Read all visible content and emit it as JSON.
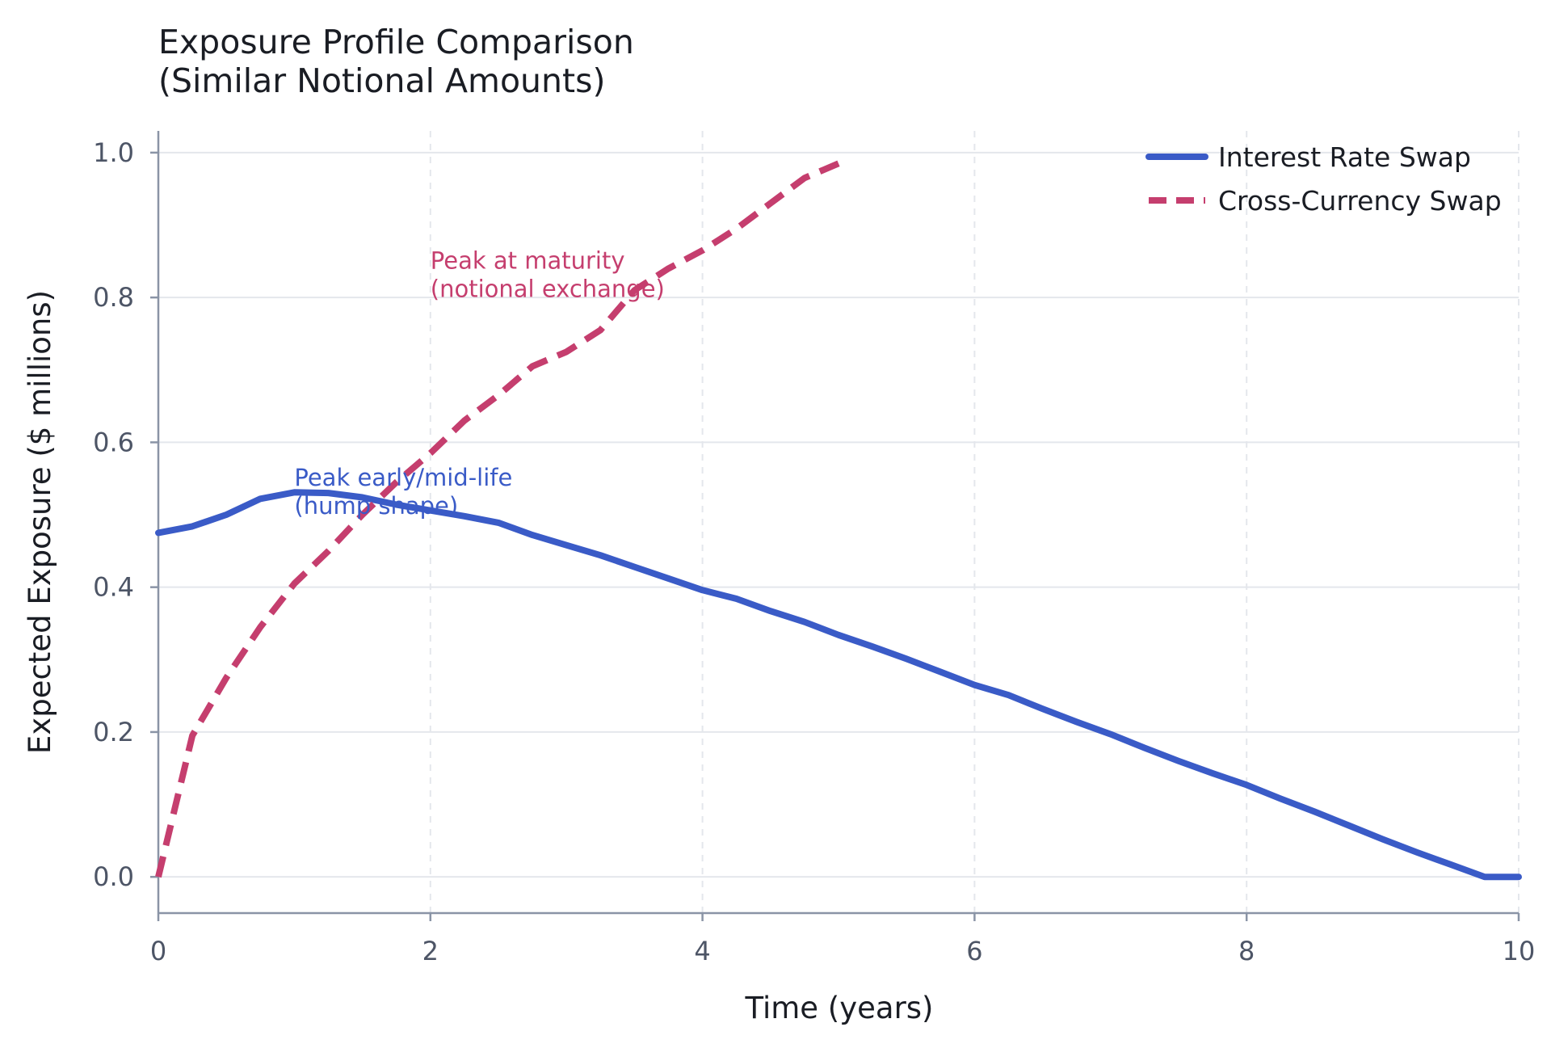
{
  "chart_data": {
    "type": "line",
    "title": [
      "Exposure Profile Comparison",
      "(Similar Notional Amounts)"
    ],
    "xlabel": "Time (years)",
    "ylabel": "Expected Exposure ($ millions)",
    "xlim": [
      0,
      10
    ],
    "ylim": [
      -0.05,
      1.03
    ],
    "xticks": [
      0,
      2,
      4,
      6,
      8,
      10
    ],
    "xtick_labels": [
      "0",
      "2",
      "4",
      "6",
      "8",
      "10"
    ],
    "yticks": [
      0.0,
      0.2,
      0.4,
      0.6,
      0.8,
      1.0
    ],
    "ytick_labels": [
      "0.0",
      "0.2",
      "0.4",
      "0.6",
      "0.8",
      "1.0"
    ],
    "grid": true,
    "legend_position": "top-right",
    "series": [
      {
        "name": "Interest Rate Swap",
        "color": "#3a5bc7",
        "style": "solid",
        "x": [
          0,
          0.25,
          0.5,
          0.75,
          1.0,
          1.25,
          1.5,
          1.75,
          2.0,
          2.25,
          2.5,
          2.75,
          3.0,
          3.25,
          3.5,
          3.75,
          4.0,
          4.25,
          4.5,
          4.75,
          5.0,
          5.25,
          5.5,
          5.75,
          6.0,
          6.25,
          6.5,
          6.75,
          7.0,
          7.25,
          7.5,
          7.75,
          8.0,
          8.25,
          8.5,
          8.75,
          9.0,
          9.25,
          9.5,
          9.75,
          10.0
        ],
        "values": [
          0.475,
          0.484,
          0.5,
          0.522,
          0.531,
          0.53,
          0.524,
          0.514,
          0.506,
          0.498,
          0.489,
          0.472,
          0.458,
          0.444,
          0.428,
          0.412,
          0.396,
          0.384,
          0.367,
          0.352,
          0.334,
          0.318,
          0.301,
          0.283,
          0.265,
          0.251,
          0.232,
          0.214,
          0.197,
          0.178,
          0.16,
          0.143,
          0.127,
          0.108,
          0.09,
          0.071,
          0.052,
          0.034,
          0.017,
          0.0,
          0.0
        ],
        "values_note_removed": true
      },
      {
        "name": "Cross-Currency Swap",
        "color": "#c53e6e",
        "style": "dashed",
        "x": [
          0,
          0.25,
          0.5,
          0.75,
          1.0,
          1.25,
          1.5,
          1.75,
          2.0,
          2.25,
          2.5,
          2.75,
          3.0,
          3.25,
          3.5,
          3.75,
          4.0,
          4.25,
          4.5,
          4.75,
          5.0
        ],
        "values": [
          0.0,
          0.195,
          0.275,
          0.345,
          0.405,
          0.45,
          0.5,
          0.545,
          0.585,
          0.63,
          0.665,
          0.705,
          0.725,
          0.755,
          0.81,
          0.84,
          0.865,
          0.895,
          0.93,
          0.965,
          0.985
        ]
      }
    ],
    "annotations": [
      {
        "text": [
          "Peak early/mid-life",
          "(hump shape)"
        ],
        "x": 1.0,
        "y": 0.54,
        "color": "#3a5bc7"
      },
      {
        "text": [
          "Peak at maturity",
          "(notional exchange)"
        ],
        "x": 2.0,
        "y": 0.84,
        "color": "#c53e6e"
      }
    ]
  }
}
